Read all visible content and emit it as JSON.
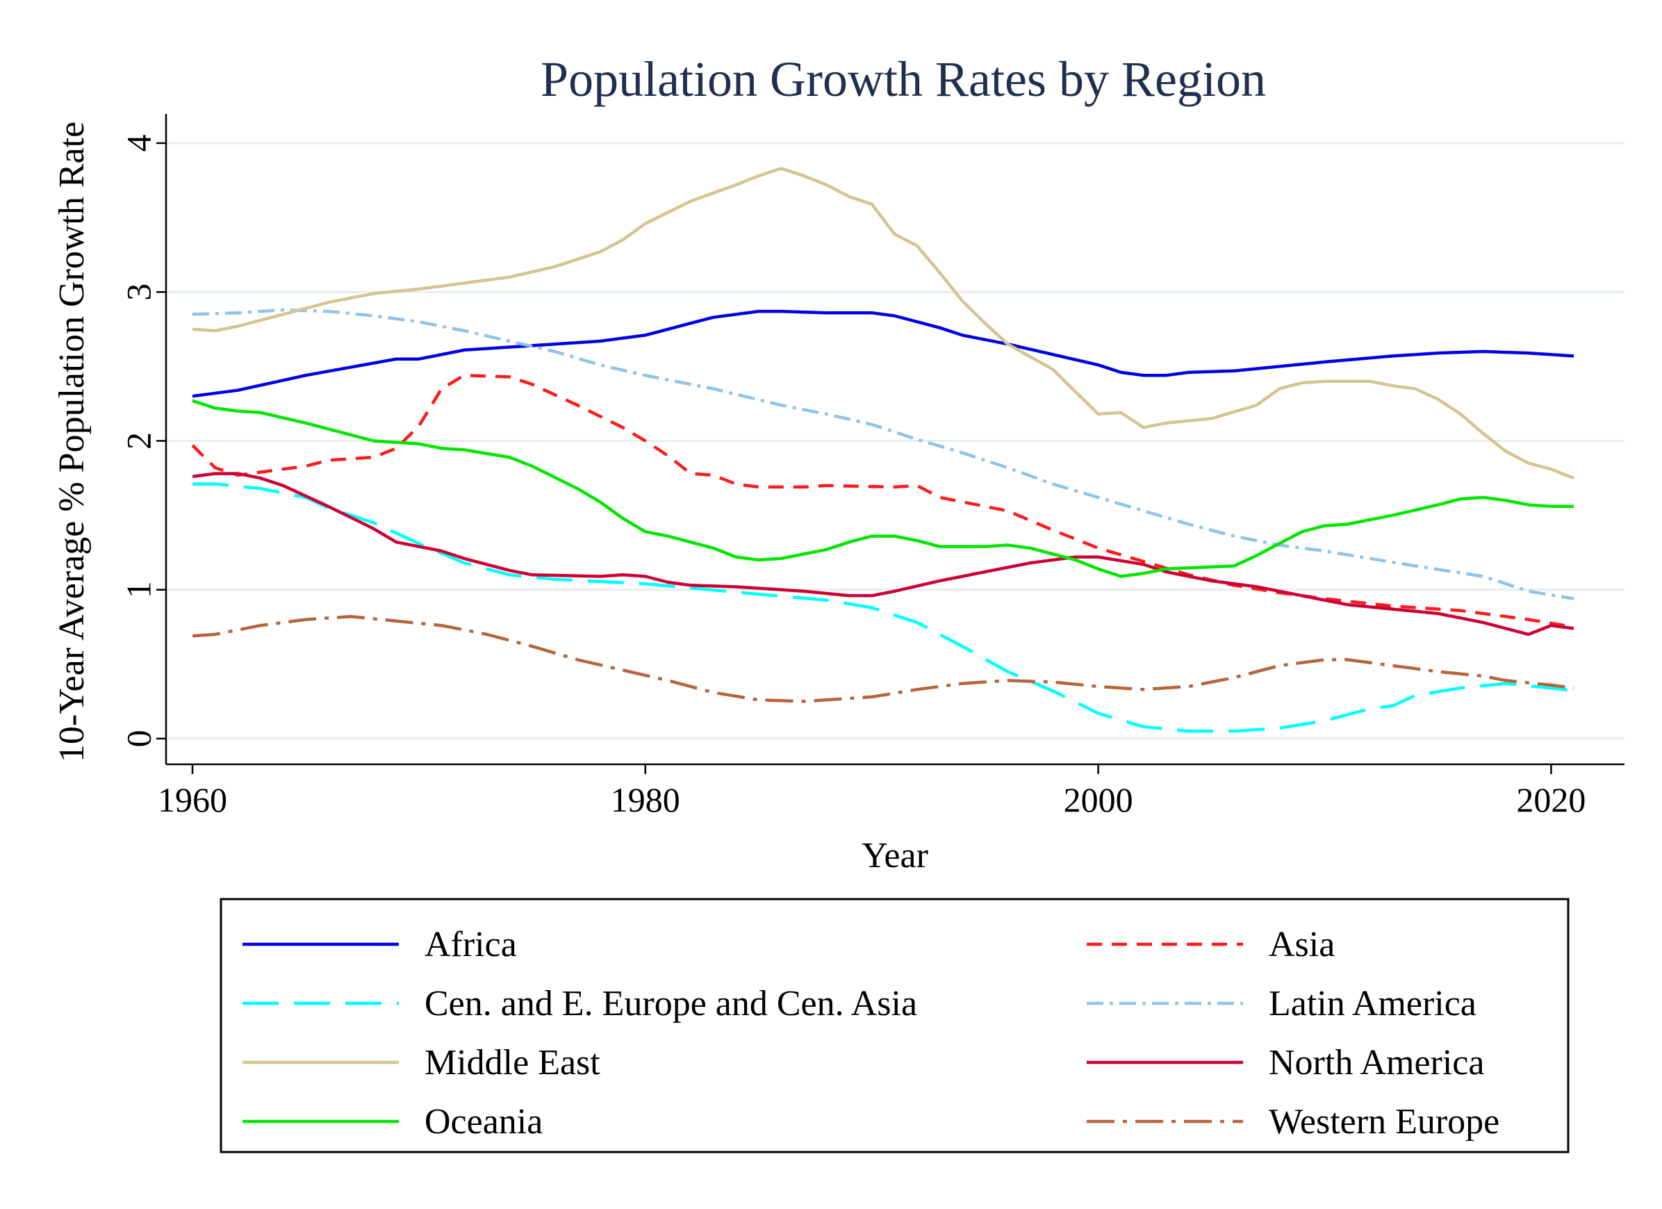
{
  "chart_data": {
    "type": "line",
    "title": "Population Growth Rates by Region",
    "xlabel": "Year",
    "ylabel": "10-Year Average % Population Growth Rate",
    "xlim": [
      1959,
      2022
    ],
    "ylim": [
      -0.17,
      4.1
    ],
    "xticks": [
      1960,
      1980,
      2000,
      2020
    ],
    "yticks": [
      0,
      1,
      2,
      3,
      4
    ],
    "grid": true,
    "legend_position": "bottom",
    "series": [
      {
        "name": "Africa",
        "color": "#0000e6",
        "dash": "solid",
        "points": [
          [
            1960,
            2.3
          ],
          [
            1962,
            2.34
          ],
          [
            1965,
            2.44
          ],
          [
            1969,
            2.55
          ],
          [
            1970,
            2.55
          ],
          [
            1972,
            2.61
          ],
          [
            1975,
            2.64
          ],
          [
            1978,
            2.67
          ],
          [
            1980,
            2.71
          ],
          [
            1982,
            2.79
          ],
          [
            1983,
            2.83
          ],
          [
            1985,
            2.87
          ],
          [
            1986,
            2.87
          ],
          [
            1988,
            2.86
          ],
          [
            1990,
            2.86
          ],
          [
            1991,
            2.84
          ],
          [
            1993,
            2.76
          ],
          [
            1994,
            2.71
          ],
          [
            1996,
            2.65
          ],
          [
            1998,
            2.58
          ],
          [
            2000,
            2.51
          ],
          [
            2001,
            2.46
          ],
          [
            2002,
            2.44
          ],
          [
            2003,
            2.44
          ],
          [
            2004,
            2.46
          ],
          [
            2006,
            2.47
          ],
          [
            2008,
            2.5
          ],
          [
            2010,
            2.53
          ],
          [
            2013,
            2.57
          ],
          [
            2015,
            2.59
          ],
          [
            2017,
            2.6
          ],
          [
            2019,
            2.59
          ],
          [
            2021,
            2.57
          ]
        ]
      },
      {
        "name": "Asia",
        "color": "#ff1a1a",
        "dash": "dash",
        "points": [
          [
            1960,
            1.97
          ],
          [
            1961,
            1.82
          ],
          [
            1962,
            1.77
          ],
          [
            1963,
            1.79
          ],
          [
            1965,
            1.83
          ],
          [
            1966,
            1.87
          ],
          [
            1968,
            1.89
          ],
          [
            1969,
            1.95
          ],
          [
            1970,
            2.1
          ],
          [
            1971,
            2.35
          ],
          [
            1972,
            2.44
          ],
          [
            1974,
            2.43
          ],
          [
            1975,
            2.38
          ],
          [
            1977,
            2.24
          ],
          [
            1979,
            2.09
          ],
          [
            1980,
            2.0
          ],
          [
            1981,
            1.9
          ],
          [
            1982,
            1.78
          ],
          [
            1983,
            1.77
          ],
          [
            1984,
            1.71
          ],
          [
            1985,
            1.69
          ],
          [
            1987,
            1.69
          ],
          [
            1988,
            1.7
          ],
          [
            1991,
            1.69
          ],
          [
            1992,
            1.7
          ],
          [
            1993,
            1.62
          ],
          [
            1996,
            1.53
          ],
          [
            1998,
            1.4
          ],
          [
            2000,
            1.28
          ],
          [
            2002,
            1.19
          ],
          [
            2004,
            1.1
          ],
          [
            2006,
            1.03
          ],
          [
            2008,
            0.98
          ],
          [
            2010,
            0.94
          ],
          [
            2013,
            0.89
          ],
          [
            2016,
            0.86
          ],
          [
            2019,
            0.8
          ],
          [
            2021,
            0.75
          ]
        ]
      },
      {
        "name": "Cen. and E. Europe and Cen. Asia",
        "color": "#00ffff",
        "dash": "longdash",
        "points": [
          [
            1960,
            1.71
          ],
          [
            1961,
            1.71
          ],
          [
            1963,
            1.68
          ],
          [
            1965,
            1.62
          ],
          [
            1966,
            1.55
          ],
          [
            1968,
            1.45
          ],
          [
            1970,
            1.31
          ],
          [
            1972,
            1.18
          ],
          [
            1974,
            1.1
          ],
          [
            1976,
            1.07
          ],
          [
            1980,
            1.04
          ],
          [
            1985,
            0.97
          ],
          [
            1988,
            0.93
          ],
          [
            1990,
            0.88
          ],
          [
            1992,
            0.78
          ],
          [
            1994,
            0.62
          ],
          [
            1996,
            0.45
          ],
          [
            1998,
            0.32
          ],
          [
            2000,
            0.17
          ],
          [
            2002,
            0.08
          ],
          [
            2004,
            0.05
          ],
          [
            2006,
            0.05
          ],
          [
            2008,
            0.07
          ],
          [
            2010,
            0.12
          ],
          [
            2012,
            0.2
          ],
          [
            2013,
            0.22
          ],
          [
            2014,
            0.29
          ],
          [
            2016,
            0.34
          ],
          [
            2018,
            0.37
          ],
          [
            2020,
            0.34
          ],
          [
            2021,
            0.32
          ]
        ]
      },
      {
        "name": "Latin America",
        "color": "#8fc3e8",
        "dash": "dashdot",
        "points": [
          [
            1960,
            2.85
          ],
          [
            1962,
            2.86
          ],
          [
            1964,
            2.88
          ],
          [
            1966,
            2.87
          ],
          [
            1968,
            2.84
          ],
          [
            1970,
            2.8
          ],
          [
            1972,
            2.74
          ],
          [
            1974,
            2.67
          ],
          [
            1976,
            2.6
          ],
          [
            1978,
            2.51
          ],
          [
            1980,
            2.44
          ],
          [
            1983,
            2.35
          ],
          [
            1986,
            2.24
          ],
          [
            1988,
            2.18
          ],
          [
            1990,
            2.11
          ],
          [
            1992,
            2.01
          ],
          [
            1994,
            1.92
          ],
          [
            1996,
            1.82
          ],
          [
            1998,
            1.71
          ],
          [
            2000,
            1.62
          ],
          [
            2002,
            1.53
          ],
          [
            2004,
            1.44
          ],
          [
            2006,
            1.36
          ],
          [
            2008,
            1.3
          ],
          [
            2010,
            1.26
          ],
          [
            2012,
            1.21
          ],
          [
            2014,
            1.16
          ],
          [
            2017,
            1.09
          ],
          [
            2019,
            0.99
          ],
          [
            2021,
            0.94
          ]
        ]
      },
      {
        "name": "Middle East",
        "color": "#d4c48f",
        "dash": "solid",
        "points": [
          [
            1960,
            2.75
          ],
          [
            1961,
            2.74
          ],
          [
            1962,
            2.77
          ],
          [
            1964,
            2.85
          ],
          [
            1966,
            2.93
          ],
          [
            1968,
            2.99
          ],
          [
            1970,
            3.02
          ],
          [
            1972,
            3.06
          ],
          [
            1974,
            3.1
          ],
          [
            1976,
            3.17
          ],
          [
            1978,
            3.27
          ],
          [
            1979,
            3.35
          ],
          [
            1980,
            3.46
          ],
          [
            1982,
            3.61
          ],
          [
            1984,
            3.72
          ],
          [
            1985,
            3.78
          ],
          [
            1986,
            3.83
          ],
          [
            1987,
            3.78
          ],
          [
            1988,
            3.72
          ],
          [
            1989,
            3.64
          ],
          [
            1990,
            3.59
          ],
          [
            1991,
            3.39
          ],
          [
            1992,
            3.31
          ],
          [
            1993,
            3.13
          ],
          [
            1994,
            2.94
          ],
          [
            1995,
            2.79
          ],
          [
            1996,
            2.65
          ],
          [
            1998,
            2.48
          ],
          [
            1999,
            2.33
          ],
          [
            2000,
            2.18
          ],
          [
            2001,
            2.19
          ],
          [
            2002,
            2.09
          ],
          [
            2003,
            2.12
          ],
          [
            2005,
            2.15
          ],
          [
            2007,
            2.24
          ],
          [
            2008,
            2.35
          ],
          [
            2009,
            2.39
          ],
          [
            2010,
            2.4
          ],
          [
            2012,
            2.4
          ],
          [
            2013,
            2.37
          ],
          [
            2014,
            2.35
          ],
          [
            2015,
            2.28
          ],
          [
            2016,
            2.18
          ],
          [
            2017,
            2.05
          ],
          [
            2018,
            1.93
          ],
          [
            2019,
            1.85
          ],
          [
            2020,
            1.81
          ],
          [
            2021,
            1.75
          ]
        ]
      },
      {
        "name": "North America",
        "color": "#cc0033",
        "dash": "solid",
        "points": [
          [
            1960,
            1.76
          ],
          [
            1961,
            1.78
          ],
          [
            1962,
            1.78
          ],
          [
            1963,
            1.75
          ],
          [
            1964,
            1.7
          ],
          [
            1966,
            1.56
          ],
          [
            1968,
            1.41
          ],
          [
            1969,
            1.32
          ],
          [
            1971,
            1.26
          ],
          [
            1972,
            1.21
          ],
          [
            1974,
            1.13
          ],
          [
            1975,
            1.1
          ],
          [
            1978,
            1.09
          ],
          [
            1979,
            1.1
          ],
          [
            1980,
            1.09
          ],
          [
            1981,
            1.05
          ],
          [
            1982,
            1.03
          ],
          [
            1984,
            1.02
          ],
          [
            1985,
            1.01
          ],
          [
            1987,
            0.99
          ],
          [
            1989,
            0.96
          ],
          [
            1990,
            0.96
          ],
          [
            1991,
            0.99
          ],
          [
            1993,
            1.06
          ],
          [
            1995,
            1.12
          ],
          [
            1997,
            1.18
          ],
          [
            1999,
            1.22
          ],
          [
            2000,
            1.22
          ],
          [
            2002,
            1.17
          ],
          [
            2003,
            1.12
          ],
          [
            2005,
            1.06
          ],
          [
            2007,
            1.02
          ],
          [
            2009,
            0.96
          ],
          [
            2011,
            0.9
          ],
          [
            2013,
            0.87
          ],
          [
            2015,
            0.84
          ],
          [
            2017,
            0.78
          ],
          [
            2019,
            0.7
          ],
          [
            2020,
            0.76
          ],
          [
            2021,
            0.74
          ]
        ]
      },
      {
        "name": "Oceania",
        "color": "#00e600",
        "dash": "solid",
        "points": [
          [
            1960,
            2.27
          ],
          [
            1961,
            2.22
          ],
          [
            1962,
            2.2
          ],
          [
            1963,
            2.19
          ],
          [
            1965,
            2.12
          ],
          [
            1967,
            2.04
          ],
          [
            1968,
            2.0
          ],
          [
            1970,
            1.98
          ],
          [
            1971,
            1.95
          ],
          [
            1972,
            1.94
          ],
          [
            1974,
            1.89
          ],
          [
            1975,
            1.83
          ],
          [
            1977,
            1.68
          ],
          [
            1978,
            1.59
          ],
          [
            1979,
            1.48
          ],
          [
            1980,
            1.39
          ],
          [
            1981,
            1.36
          ],
          [
            1983,
            1.28
          ],
          [
            1984,
            1.22
          ],
          [
            1985,
            1.2
          ],
          [
            1986,
            1.21
          ],
          [
            1988,
            1.27
          ],
          [
            1989,
            1.32
          ],
          [
            1990,
            1.36
          ],
          [
            1991,
            1.36
          ],
          [
            1992,
            1.33
          ],
          [
            1993,
            1.29
          ],
          [
            1995,
            1.29
          ],
          [
            1996,
            1.3
          ],
          [
            1997,
            1.28
          ],
          [
            1999,
            1.2
          ],
          [
            2000,
            1.14
          ],
          [
            2001,
            1.09
          ],
          [
            2002,
            1.11
          ],
          [
            2003,
            1.14
          ],
          [
            2006,
            1.16
          ],
          [
            2007,
            1.23
          ],
          [
            2008,
            1.31
          ],
          [
            2009,
            1.39
          ],
          [
            2010,
            1.43
          ],
          [
            2011,
            1.44
          ],
          [
            2013,
            1.5
          ],
          [
            2015,
            1.57
          ],
          [
            2016,
            1.61
          ],
          [
            2017,
            1.62
          ],
          [
            2018,
            1.6
          ],
          [
            2019,
            1.57
          ],
          [
            2020,
            1.56
          ],
          [
            2021,
            1.56
          ]
        ]
      },
      {
        "name": "Western Europe",
        "color": "#b5653a",
        "dash": "longdashdot",
        "points": [
          [
            1960,
            0.69
          ],
          [
            1961,
            0.7
          ],
          [
            1963,
            0.76
          ],
          [
            1965,
            0.8
          ],
          [
            1966,
            0.81
          ],
          [
            1967,
            0.82
          ],
          [
            1969,
            0.79
          ],
          [
            1971,
            0.76
          ],
          [
            1973,
            0.7
          ],
          [
            1975,
            0.62
          ],
          [
            1977,
            0.53
          ],
          [
            1979,
            0.46
          ],
          [
            1981,
            0.39
          ],
          [
            1983,
            0.31
          ],
          [
            1985,
            0.26
          ],
          [
            1987,
            0.25
          ],
          [
            1988,
            0.26
          ],
          [
            1990,
            0.28
          ],
          [
            1992,
            0.33
          ],
          [
            1994,
            0.37
          ],
          [
            1996,
            0.39
          ],
          [
            1998,
            0.38
          ],
          [
            2000,
            0.35
          ],
          [
            2002,
            0.33
          ],
          [
            2004,
            0.35
          ],
          [
            2006,
            0.41
          ],
          [
            2008,
            0.49
          ],
          [
            2010,
            0.53
          ],
          [
            2011,
            0.53
          ],
          [
            2013,
            0.49
          ],
          [
            2015,
            0.45
          ],
          [
            2017,
            0.42
          ],
          [
            2018,
            0.39
          ],
          [
            2020,
            0.36
          ],
          [
            2021,
            0.34
          ]
        ]
      }
    ]
  },
  "legend": {
    "items": [
      "Africa",
      "Asia",
      "Cen. and E. Europe and Cen. Asia",
      "Latin America",
      "Middle East",
      "North America",
      "Oceania",
      "Western Europe"
    ]
  }
}
